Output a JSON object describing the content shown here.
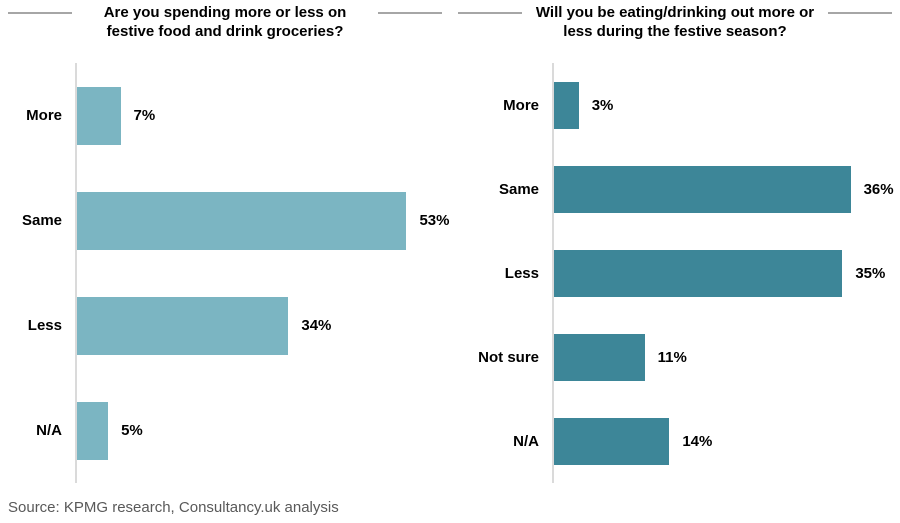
{
  "source": "Source: KPMG research, Consultancy.uk analysis",
  "colors": {
    "left_bar": "#7bb5c2",
    "right_bar": "#3d8698",
    "axis_line": "#dadada",
    "title_rule": "#a6a6a6",
    "source_text": "#595959",
    "text": "#000000"
  },
  "chart_data": [
    {
      "type": "bar",
      "orientation": "horizontal",
      "title": "Are you spending more or less on festive food and drink groceries?",
      "categories": [
        "More",
        "Same",
        "Less",
        "N/A"
      ],
      "values": [
        7,
        53,
        34,
        5
      ],
      "value_labels": [
        "7%",
        "53%",
        "34%",
        "5%"
      ],
      "xlabel": "",
      "ylabel": "",
      "xlim": [
        0,
        60
      ],
      "bar_color": "#7bb5c2",
      "grid": false,
      "legend": false
    },
    {
      "type": "bar",
      "orientation": "horizontal",
      "title": "Will you be eating/drinking out more or less during the festive season?",
      "categories": [
        "More",
        "Same",
        "Less",
        "Not sure",
        "N/A"
      ],
      "values": [
        3,
        36,
        35,
        11,
        14
      ],
      "value_labels": [
        "3%",
        "36%",
        "35%",
        "11%",
        "14%"
      ],
      "xlabel": "",
      "ylabel": "",
      "xlim": [
        0,
        42
      ],
      "bar_color": "#3d8698",
      "grid": false,
      "legend": false
    }
  ]
}
